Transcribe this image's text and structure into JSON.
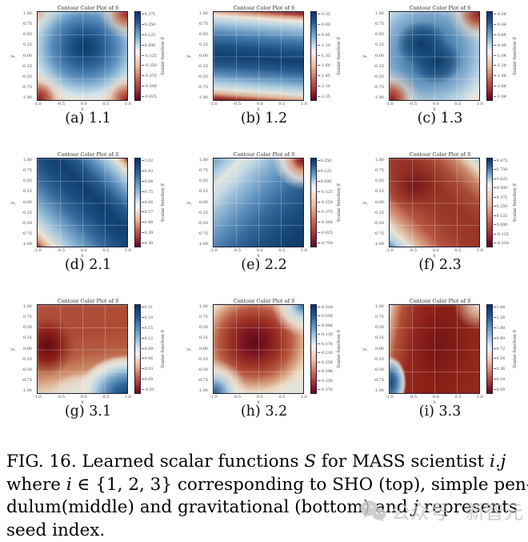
{
  "page": {
    "background": "#ffffff"
  },
  "figure_caption": {
    "lines": [
      [
        {
          "t": "FIG. 16.  Learned scalar functions "
        },
        {
          "t": "S",
          "i": 1
        },
        {
          "t": " for MASS scientist "
        },
        {
          "t": "i.j",
          "i": 1
        }
      ],
      [
        {
          "t": "where "
        },
        {
          "t": "i",
          "i": 1
        },
        {
          "t": " ∈ {1, 2, 3} corresponding to SHO (top), simple pen-"
        }
      ],
      [
        {
          "t": "dulum(middle) and gravitational (bottom) and "
        },
        {
          "t": "j",
          "i": 1
        },
        {
          "t": " represents"
        }
      ],
      [
        {
          "t": "seed index."
        }
      ]
    ]
  },
  "watermark": {
    "text": "公众号 · 新智元",
    "icon": "wechat-icon"
  },
  "colors": {
    "colormap_stops": [
      "#08306b",
      "#2166ac",
      "#6bacd1",
      "#c6dbef",
      "#f7f5f0",
      "#f0b894",
      "#d6604d",
      "#b2182b",
      "#67001f"
    ]
  },
  "plots": [
    {
      "key": "a",
      "subcaption": "(a) 1.1",
      "title": "Contour Color Plot of S",
      "xlabel": "x",
      "ylabel": "y",
      "colorbar_label": "Scalar function S",
      "xticks": [
        "-1.0",
        "-0.5",
        "0.0",
        "0.5",
        "1.0"
      ],
      "yticks": [
        "1.00",
        "0.75",
        "0.50",
        "0.25",
        "0.00",
        "-0.25",
        "-0.50",
        "-0.75",
        "-1.00"
      ],
      "colorbar_ticks": [
        "0.375",
        "0.250",
        "0.125",
        "0.000",
        "-0.125",
        "-0.250",
        "-0.375",
        "-0.500",
        "-0.625"
      ]
    },
    {
      "key": "b",
      "subcaption": "(b) 1.2",
      "title": "Contour Color Plot of S",
      "xlabel": "x",
      "ylabel": "y",
      "colorbar_label": "Scalar function S",
      "xticks": [
        "-1.0",
        "-0.5",
        "0.0",
        "0.5",
        "1.0"
      ],
      "yticks": [
        "1.00",
        "0.75",
        "0.50",
        "0.25",
        "0.00",
        "-0.25",
        "-0.50",
        "-0.75",
        "-1.00"
      ],
      "colorbar_ticks": [
        "-0.35",
        "-0.60",
        "-0.85",
        "-1.10",
        "-1.35",
        "-1.60",
        "-1.85",
        "-2.10",
        "-2.35"
      ]
    },
    {
      "key": "c",
      "subcaption": "(c) 1.3",
      "title": "Contour Color Plot of S",
      "xlabel": "x",
      "ylabel": "y",
      "colorbar_label": "Scalar function S",
      "xticks": [
        "-1.0",
        "-0.5",
        "0.0",
        "0.5",
        "1.0"
      ],
      "yticks": [
        "1.00",
        "0.75",
        "0.50",
        "0.25",
        "0.00",
        "-0.25",
        "-0.50",
        "-0.75",
        "-1.00"
      ],
      "colorbar_ticks": [
        "-0.24",
        "-0.44",
        "-0.64",
        "-0.84",
        "-1.04",
        "-1.24",
        "-1.44",
        "-1.64",
        "-1.84"
      ]
    },
    {
      "key": "d",
      "subcaption": "(d) 2.1",
      "title": "Contour Color Plot of S",
      "xlabel": "x",
      "ylabel": "y",
      "colorbar_label": "Scalar function S",
      "xticks": [
        "-1.0",
        "-0.5",
        "0.0",
        "0.5",
        "1.0"
      ],
      "yticks": [
        "1.00",
        "0.75",
        "0.50",
        "0.25",
        "0.00",
        "-0.25",
        "-0.50",
        "-0.75",
        "-1.00"
      ],
      "colorbar_ticks": [
        "1.02",
        "0.93",
        "0.84",
        "0.75",
        "0.66",
        "0.57",
        "0.48",
        "0.39",
        "0.30"
      ]
    },
    {
      "key": "e",
      "subcaption": "(e) 2.2",
      "title": "Contour Color Plot of S",
      "xlabel": "x",
      "ylabel": "y",
      "colorbar_label": "Scalar function S",
      "xticks": [
        "-1.0",
        "-0.5",
        "0.0",
        "0.5",
        "1.0"
      ],
      "yticks": [
        "1.00",
        "0.75",
        "0.50",
        "0.25",
        "0.00",
        "-0.25",
        "-0.50",
        "-0.75",
        "-1.00"
      ],
      "colorbar_ticks": [
        "0.250",
        "0.125",
        "0.000",
        "-0.125",
        "-0.250",
        "-0.375",
        "-0.500",
        "-0.625",
        "-0.750"
      ]
    },
    {
      "key": "f",
      "subcaption": "(f) 2.3",
      "title": "Contour Color Plot of S",
      "xlabel": "x",
      "ylabel": "y",
      "colorbar_label": "Scalar function S",
      "xticks": [
        "-1.0",
        "-0.5",
        "0.0",
        "0.5",
        "1.0"
      ],
      "yticks": [
        "1.00",
        "0.75",
        "0.50",
        "0.25",
        "0.00",
        "-0.25",
        "-0.50",
        "-0.75",
        "-1.00"
      ],
      "colorbar_ticks": [
        "0.875",
        "0.750",
        "0.625",
        "0.500",
        "0.375",
        "0.250",
        "0.125",
        "0.000",
        "-0.125",
        "-0.250"
      ]
    },
    {
      "key": "g",
      "subcaption": "(g) 3.1",
      "title": "Contour Color Plot of S",
      "xlabel": "x",
      "ylabel": "y",
      "colorbar_label": "Scalar function S",
      "xticks": [
        "-1.0",
        "-0.5",
        "0.0",
        "0.5",
        "1.0"
      ],
      "yticks": [
        "1.00",
        "0.75",
        "0.50",
        "0.25",
        "0.00",
        "-0.25",
        "-0.50",
        "-0.75",
        "-1.00"
      ],
      "colorbar_ticks": [
        "0.21",
        "0.18",
        "0.15",
        "0.12",
        "0.09",
        "0.06",
        "0.03",
        "0.00",
        "-0.03"
      ]
    },
    {
      "key": "h",
      "subcaption": "(h) 3.2",
      "title": "Contour Color Plot of S",
      "xlabel": "x",
      "ylabel": "y",
      "colorbar_label": "Scalar function S",
      "xticks": [
        "-1.0",
        "-0.5",
        "0.0",
        "0.5",
        "1.0"
      ],
      "yticks": [
        "1.00",
        "0.75",
        "0.50",
        "0.25",
        "0.00",
        "-0.25",
        "-0.50",
        "-0.75",
        "-1.00"
      ],
      "colorbar_ticks": [
        "-0.016",
        "-0.056",
        "-0.096",
        "-0.136",
        "-0.176",
        "-0.216",
        "-0.256",
        "-0.296",
        "-0.336",
        "-0.376"
      ]
    },
    {
      "key": "i",
      "subcaption": "(i) 3.3",
      "title": "Contour Color Plot of S",
      "xlabel": "x",
      "ylabel": "y",
      "colorbar_label": "Scalar function S",
      "xticks": [
        "-1.0",
        "-0.5",
        "0.0",
        "0.5",
        "1.0"
      ],
      "yticks": [
        "1.00",
        "0.75",
        "0.50",
        "0.25",
        "0.00",
        "-0.25",
        "-0.50",
        "-0.75",
        "-1.00"
      ],
      "colorbar_ticks": [
        "1.44",
        "1.26",
        "1.08",
        "0.90",
        "0.72",
        "0.54",
        "0.36",
        "0.18",
        "0.00"
      ]
    }
  ],
  "chart_data": [
    {
      "type": "heatmap",
      "subplot": "(a) 1.1",
      "system": "SHO",
      "seed": 1,
      "title": "Contour Color Plot of S",
      "xlabel": "x",
      "ylabel": "y",
      "x_range": [
        -1.0,
        1.0
      ],
      "y_range": [
        -1.0,
        1.0
      ],
      "z_ticks": [
        0.375,
        0.25,
        0.125,
        0.0,
        -0.125,
        -0.25,
        -0.375,
        -0.5,
        -0.625
      ],
      "colorbar_label": "Scalar function S",
      "field_description": "dark-blue circular basin centered near (0.05,0.15); warm red lobes in all four corners, strongest bottom-left and top-right"
    },
    {
      "type": "heatmap",
      "subplot": "(b) 1.2",
      "system": "SHO",
      "seed": 2,
      "title": "Contour Color Plot of S",
      "xlabel": "x",
      "ylabel": "y",
      "x_range": [
        -1.0,
        1.0
      ],
      "y_range": [
        -1.0,
        1.0
      ],
      "z_ticks": [
        -0.35,
        -0.6,
        -0.85,
        -1.1,
        -1.35,
        -1.6,
        -1.85,
        -2.1,
        -2.35
      ],
      "colorbar_label": "Scalar function S",
      "field_description": "horizontal banding: red along top and bottom edges, broad slightly tilted dark-blue band through the middle"
    },
    {
      "type": "heatmap",
      "subplot": "(c) 1.3",
      "system": "SHO",
      "seed": 3,
      "title": "Contour Color Plot of S",
      "xlabel": "x",
      "ylabel": "y",
      "x_range": [
        -1.0,
        1.0
      ],
      "y_range": [
        -1.0,
        1.0
      ],
      "z_ticks": [
        -0.24,
        -0.44,
        -0.64,
        -0.84,
        -1.04,
        -1.24,
        -1.44,
        -1.64,
        -1.84
      ],
      "colorbar_label": "Scalar function S",
      "field_description": "tilted dark-blue elliptical basin centered near (-0.1,0.0); red lobes at top-right and bottom-left corners"
    },
    {
      "type": "heatmap",
      "subplot": "(d) 2.1",
      "system": "simple pendulum",
      "seed": 1,
      "title": "Contour Color Plot of S",
      "xlabel": "x",
      "ylabel": "y",
      "x_range": [
        -1.0,
        1.0
      ],
      "y_range": [
        -1.0,
        1.0
      ],
      "z_ticks": [
        1.02,
        0.93,
        0.84,
        0.75,
        0.66,
        0.57,
        0.48,
        0.39,
        0.3
      ],
      "colorbar_label": "Scalar function S",
      "field_description": "broad dark-blue diagonal ridge from top-left to bottom-right; red wedges at top-right and bottom-left corners"
    },
    {
      "type": "heatmap",
      "subplot": "(e) 2.2",
      "system": "simple pendulum",
      "seed": 2,
      "title": "Contour Color Plot of S",
      "xlabel": "x",
      "ylabel": "y",
      "x_range": [
        -1.0,
        1.0
      ],
      "y_range": [
        -1.0,
        1.0
      ],
      "z_ticks": [
        0.25,
        0.125,
        0.0,
        -0.125,
        -0.25,
        -0.375,
        -0.5,
        -0.625,
        -0.75
      ],
      "colorbar_label": "Scalar function S",
      "field_description": "mostly blue, darkening toward bottom-right; pale diagonal band through upper-left; red lobe only at top-right corner"
    },
    {
      "type": "heatmap",
      "subplot": "(f) 2.3",
      "system": "simple pendulum",
      "seed": 3,
      "title": "Contour Color Plot of S",
      "xlabel": "x",
      "ylabel": "y",
      "x_range": [
        -1.0,
        1.0
      ],
      "y_range": [
        -1.0,
        1.0
      ],
      "z_ticks": [
        0.875,
        0.75,
        0.625,
        0.5,
        0.375,
        0.25,
        0.125,
        0.0,
        -0.125,
        -0.25
      ],
      "colorbar_label": "Scalar function S",
      "field_description": "mostly dark red with deepest red near upper-left of center; light-blue lobes at top-right and bottom-left corners"
    },
    {
      "type": "heatmap",
      "subplot": "(g) 3.1",
      "system": "gravitational",
      "seed": 1,
      "title": "Contour Color Plot of S",
      "xlabel": "x",
      "ylabel": "y",
      "x_range": [
        -1.0,
        1.0
      ],
      "y_range": [
        -1.0,
        1.0
      ],
      "z_ticks": [
        0.21,
        0.18,
        0.15,
        0.12,
        0.09,
        0.06,
        0.03,
        0.0,
        -0.03
      ],
      "colorbar_label": "Scalar function S",
      "field_description": "dark-red pocket at mid-left; red over most of the domain; blue basin filling the bottom-right, darkest at the corner"
    },
    {
      "type": "heatmap",
      "subplot": "(h) 3.2",
      "system": "gravitational",
      "seed": 2,
      "title": "Contour Color Plot of S",
      "xlabel": "x",
      "ylabel": "y",
      "x_range": [
        -1.0,
        1.0
      ],
      "y_range": [
        -1.0,
        1.0
      ],
      "z_ticks": [
        -0.016,
        -0.056,
        -0.096,
        -0.136,
        -0.176,
        -0.216,
        -0.256,
        -0.296,
        -0.336,
        -0.376
      ],
      "colorbar_label": "Scalar function S",
      "field_description": "dark-red circular bump centered near (0.0,0.1); blue lobes at top-right and bottom-left corners"
    },
    {
      "type": "heatmap",
      "subplot": "(i) 3.3",
      "system": "gravitational",
      "seed": 3,
      "title": "Contour Color Plot of S",
      "xlabel": "x",
      "ylabel": "y",
      "x_range": [
        -1.0,
        1.0
      ],
      "y_range": [
        -1.0,
        1.0
      ],
      "z_ticks": [
        1.44,
        1.26,
        1.08,
        0.9,
        0.72,
        0.54,
        0.36,
        0.18,
        0.0
      ],
      "colorbar_label": "Scalar function S",
      "field_description": "almost entirely dark red; small blue wedge on the lower-left edge; pale patch at top-right corner"
    }
  ]
}
